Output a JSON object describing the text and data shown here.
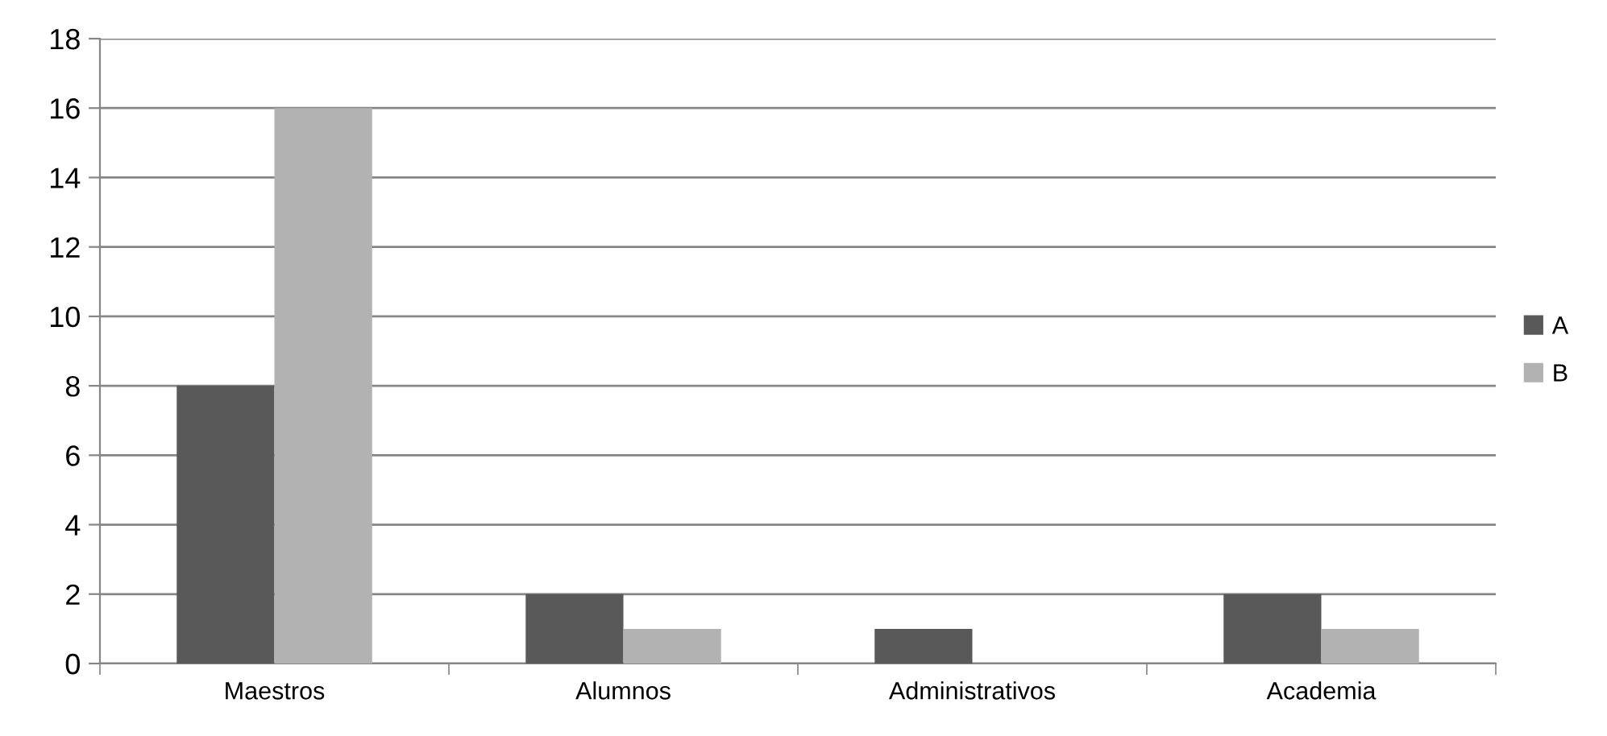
{
  "chart_data": {
    "type": "bar",
    "categories": [
      "Maestros",
      "Alumnos",
      "Administrativos",
      "Academia"
    ],
    "series": [
      {
        "name": "A",
        "color": "#595959",
        "values": [
          8,
          2,
          1,
          2
        ]
      },
      {
        "name": "B",
        "color": "#b2b2b2",
        "values": [
          16,
          1,
          0,
          1
        ]
      }
    ],
    "ylim": [
      0,
      18
    ],
    "yticks": [
      0,
      2,
      4,
      6,
      8,
      10,
      12,
      14,
      16,
      18
    ],
    "grid": "y",
    "legend": "right"
  }
}
